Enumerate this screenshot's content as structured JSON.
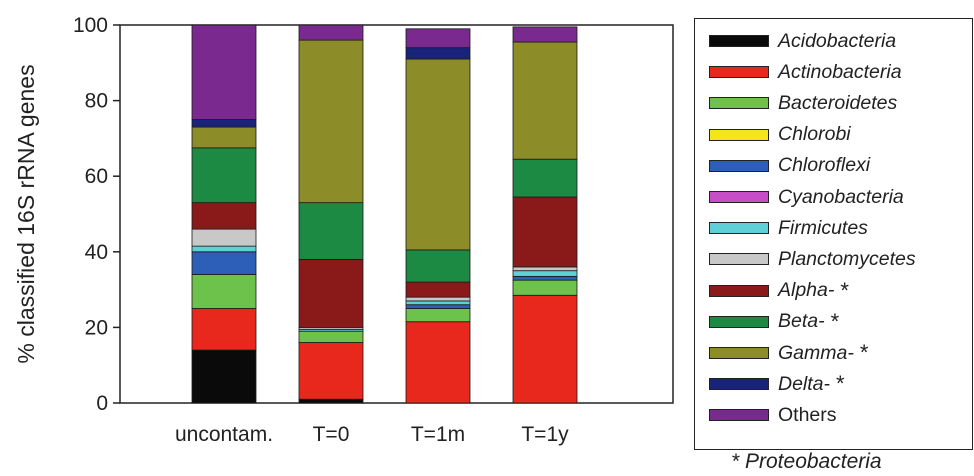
{
  "chart_data": {
    "type": "bar",
    "stacked": true,
    "ylabel": "% classified 16S rRNA genes",
    "ylim": [
      0,
      100
    ],
    "yticks": [
      0,
      20,
      40,
      60,
      80,
      100
    ],
    "grid": false,
    "legend_position": "right",
    "categories": [
      "uncontam.",
      "T=0",
      "T=1m",
      "T=1y"
    ],
    "series": [
      {
        "name": "Acidobacteria",
        "color": "#0a0a0a",
        "italic": true,
        "values": [
          14,
          1,
          0,
          0
        ]
      },
      {
        "name": "Actinobacteria",
        "color": "#e8281c",
        "italic": true,
        "values": [
          11,
          15,
          21.5,
          28.5
        ]
      },
      {
        "name": "Bacteroidetes",
        "color": "#6cc24a",
        "italic": true,
        "values": [
          9,
          3,
          3.5,
          4
        ]
      },
      {
        "name": "Chlorobi",
        "color": "#f4e51a",
        "italic": true,
        "values": [
          0,
          0,
          0,
          0
        ]
      },
      {
        "name": "Chloroflexi",
        "color": "#2e5fb8",
        "italic": true,
        "values": [
          6,
          0,
          1,
          1
        ]
      },
      {
        "name": "Cyanobacteria",
        "color": "#c84ec8",
        "italic": true,
        "values": [
          0,
          0,
          0,
          0
        ]
      },
      {
        "name": "Firmicutes",
        "color": "#5fd0d8",
        "italic": true,
        "values": [
          1.5,
          0.5,
          1,
          1.5
        ]
      },
      {
        "name": "Planctomycetes",
        "color": "#c8c8c8",
        "italic": true,
        "values": [
          4.5,
          0.5,
          1,
          1
        ]
      },
      {
        "name": "Alpha-",
        "color": "#8a1a1a",
        "italic": true,
        "values": [
          7,
          18,
          4,
          18.5
        ]
      },
      {
        "name": "Beta-",
        "color": "#1d8a44",
        "italic": true,
        "values": [
          14.5,
          15,
          8.5,
          10
        ]
      },
      {
        "name": "Gamma-",
        "color": "#8c8c28",
        "italic": true,
        "values": [
          5.5,
          43,
          50.5,
          31
        ]
      },
      {
        "name": "Delta-",
        "color": "#1a237a",
        "italic": true,
        "values": [
          2,
          0,
          3,
          0
        ]
      },
      {
        "name": "Others",
        "color": "#7a2a8e",
        "italic": false,
        "values": [
          25,
          4,
          5,
          4
        ]
      }
    ],
    "proteobacteria_series": [
      "Alpha-",
      "Beta-",
      "Gamma-",
      "Delta-"
    ],
    "proteobacteria_marker": "*",
    "footnote": "* Proteobacteria"
  }
}
